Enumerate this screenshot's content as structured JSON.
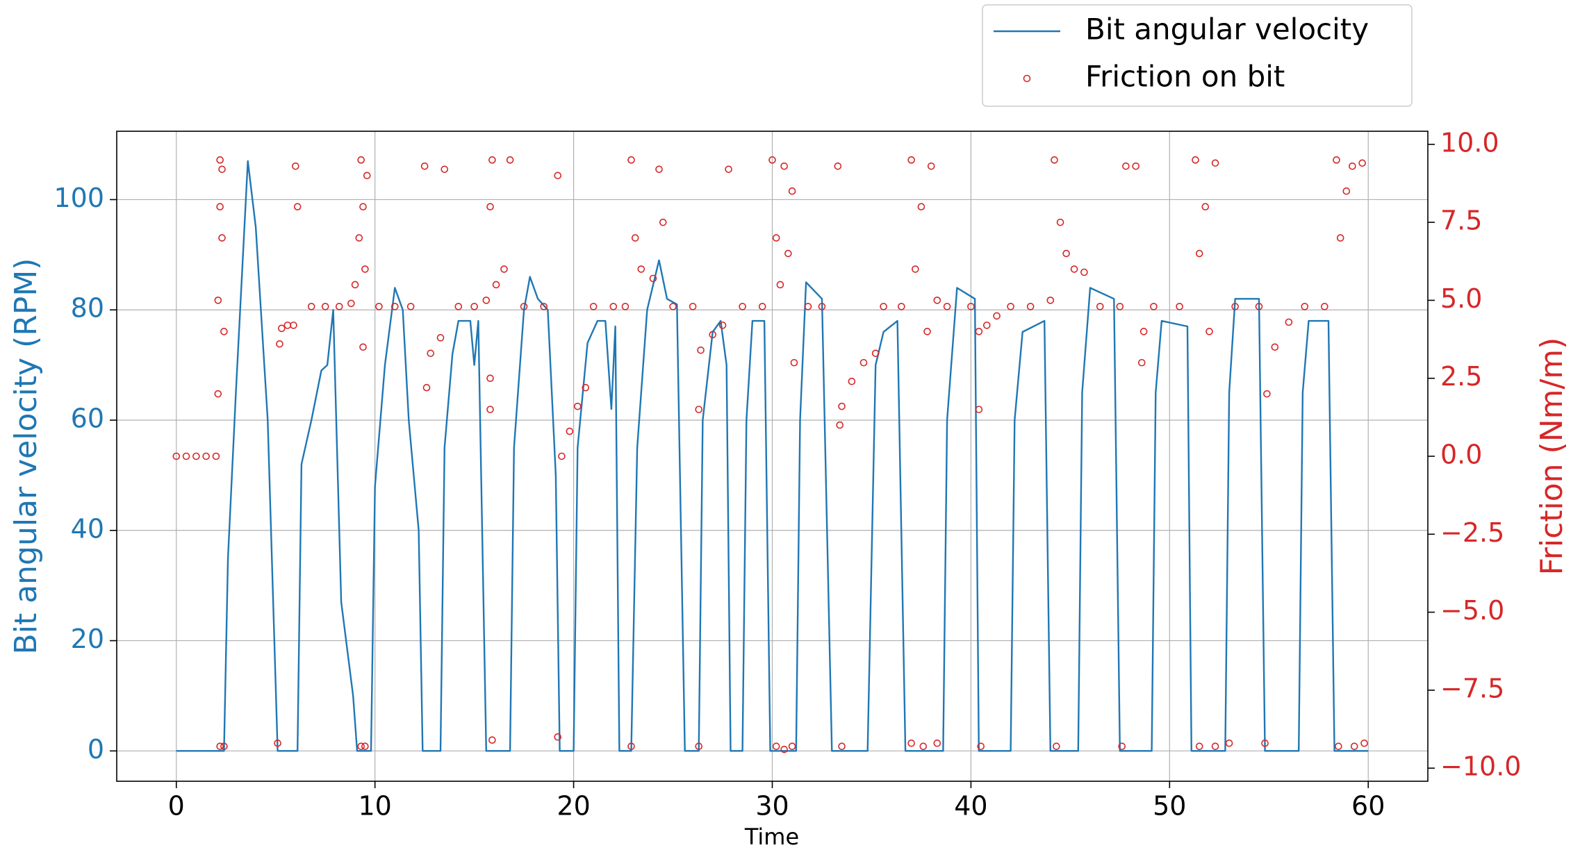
{
  "chart_data": {
    "type": "line_scatter",
    "xlabel": "Time",
    "ylabel": "Bit angular velocity (RPM)",
    "y2label": "Friction (Nm/m)",
    "xlim": [
      -3,
      63
    ],
    "xticks": [
      0,
      10,
      20,
      30,
      40,
      50,
      60
    ],
    "ylim": [
      -5.5,
      112.4
    ],
    "yticks": [
      0,
      20,
      40,
      60,
      80,
      100
    ],
    "y2lim": [
      -10.42,
      10.42
    ],
    "y2ticks": [
      {
        "value": -10,
        "label": "−10.0"
      },
      {
        "value": -7.5,
        "label": "−7.5"
      },
      {
        "value": -5,
        "label": "−5.0"
      },
      {
        "value": -2.5,
        "label": "−2.5"
      },
      {
        "value": 0,
        "label": "0.0"
      },
      {
        "value": 2.5,
        "label": "2.5"
      },
      {
        "value": 5,
        "label": "5.0"
      },
      {
        "value": 7.5,
        "label": "7.5"
      },
      {
        "value": 10,
        "label": "10.0"
      }
    ],
    "grid": true,
    "legend": "upper right",
    "series": [
      {
        "name": "Bit angular velocity",
        "color": "#1f77b4",
        "type": "line",
        "x": [
          0,
          2.4,
          2.6,
          3.0,
          3.6,
          4.0,
          4.6,
          5.1,
          6.1,
          6.3,
          6.8,
          7.3,
          7.6,
          7.9,
          8.3,
          8.9,
          9.1,
          9.8,
          10.0,
          10.5,
          11.0,
          11.4,
          11.7,
          12.2,
          12.4,
          13.3,
          13.5,
          13.9,
          14.2,
          14.8,
          15.0,
          15.2,
          15.6,
          16.8,
          17.0,
          17.5,
          17.8,
          18.2,
          18.7,
          19.1,
          19.3,
          20.0,
          20.2,
          20.7,
          21.2,
          21.6,
          21.9,
          22.1,
          22.3,
          22.9,
          23.2,
          23.7,
          24.3,
          24.7,
          25.2,
          25.6,
          26.3,
          26.5,
          27.0,
          27.4,
          27.7,
          27.9,
          28.5,
          28.7,
          29.0,
          29.6,
          29.9,
          31.2,
          31.4,
          31.7,
          32.5,
          33.0,
          34.8,
          35.2,
          35.6,
          36.3,
          36.7,
          38.6,
          38.8,
          39.3,
          40.2,
          40.4,
          42.0,
          42.2,
          42.6,
          43.7,
          44.0,
          45.4,
          45.6,
          46.0,
          47.2,
          47.5,
          49.1,
          49.3,
          49.6,
          50.9,
          51.1,
          52.8,
          53.0,
          53.3,
          54.5,
          54.8,
          56.5,
          56.7,
          57.0,
          58.0,
          58.3,
          60.0
        ],
        "values": [
          0,
          0,
          35,
          65,
          107,
          95,
          60,
          0,
          0,
          52,
          60,
          69,
          70,
          80,
          27,
          10,
          0,
          0,
          48,
          70,
          84,
          80,
          60,
          40,
          0,
          0,
          55,
          72,
          78,
          78,
          70,
          78,
          0,
          0,
          55,
          80,
          86,
          82,
          80,
          50,
          0,
          0,
          55,
          74,
          78,
          78,
          62,
          77,
          0,
          0,
          55,
          80,
          89,
          82,
          81,
          0,
          0,
          60,
          76,
          78,
          70,
          0,
          0,
          60,
          78,
          78,
          0,
          0,
          60,
          85,
          82,
          0,
          0,
          70,
          76,
          78,
          0,
          0,
          60,
          84,
          82,
          0,
          0,
          60,
          76,
          78,
          0,
          0,
          65,
          84,
          82,
          0,
          0,
          65,
          78,
          77,
          0,
          0,
          65,
          82,
          82,
          0,
          0,
          65,
          78,
          78,
          0,
          0
        ]
      },
      {
        "name": "Friction on bit",
        "color": "#d62728",
        "type": "scatter",
        "axis": "y2",
        "x": [
          0,
          0.5,
          1,
          1.5,
          2,
          2.1,
          2.1,
          2.2,
          2.2,
          2.3,
          2.3,
          2.4,
          2.2,
          2.4,
          5.1,
          5.2,
          5.3,
          5.6,
          5.9,
          6,
          6.1,
          6.8,
          7.5,
          8.2,
          8.8,
          9.0,
          9.2,
          9.3,
          9.4,
          9.5,
          9.6,
          9.4,
          9.3,
          9.5,
          10.2,
          11,
          11.8,
          12.5,
          12.6,
          12.8,
          13.3,
          13.5,
          14.2,
          15,
          15.6,
          15.8,
          15.9,
          15.8,
          15.8,
          15.9,
          16.1,
          16.5,
          16.8,
          17.5,
          18.5,
          19.2,
          19.2,
          19.4,
          19.8,
          20.2,
          20.6,
          21,
          22,
          22.6,
          22.9,
          22.9,
          23.1,
          23.4,
          24,
          24.3,
          24.5,
          25,
          26,
          26.3,
          26.3,
          26.4,
          27,
          27.5,
          27.8,
          28.5,
          29.5,
          30,
          30.2,
          30.4,
          30.6,
          30.8,
          31,
          31.1,
          30.2,
          30.6,
          31,
          31.8,
          32.5,
          33.3,
          33.4,
          33.5,
          33.5,
          34,
          34.6,
          35.2,
          35.6,
          36.5,
          37,
          37.2,
          37.5,
          37.8,
          38,
          38.3,
          37,
          37.6,
          38.3,
          38.8,
          40,
          40.4,
          40.4,
          40.5,
          40.8,
          41.3,
          42,
          43,
          44,
          44.2,
          44.5,
          44.8,
          45.2,
          45.7,
          44.3,
          46.5,
          47.5,
          47.6,
          47.8,
          48.3,
          48.6,
          48.7,
          49.2,
          50.5,
          51.3,
          51.5,
          51.8,
          52,
          52.3,
          51.5,
          52.3,
          53,
          53.3,
          54.5,
          54.8,
          54.9,
          55.3,
          56,
          56.8,
          57.8,
          58.4,
          58.6,
          58.9,
          59.2,
          59.7,
          58.5,
          59.3,
          59.8
        ],
        "values": [
          0,
          0,
          0,
          0,
          0,
          2,
          5,
          8,
          9.5,
          7,
          9.2,
          4,
          -9.3,
          -9.3,
          -9.2,
          3.6,
          4.1,
          4.2,
          4.2,
          9.3,
          8,
          4.8,
          4.8,
          4.8,
          4.9,
          5.5,
          7,
          9.5,
          8,
          6,
          9,
          3.5,
          -9.3,
          -9.3,
          4.8,
          4.8,
          4.8,
          9.3,
          2.2,
          3.3,
          3.8,
          9.2,
          4.8,
          4.8,
          5,
          8,
          9.5,
          2.5,
          1.5,
          -9.1,
          5.5,
          6,
          9.5,
          4.8,
          4.8,
          9,
          -9,
          0,
          0.8,
          1.6,
          2.2,
          4.8,
          4.8,
          4.8,
          9.5,
          -9.3,
          7,
          6,
          5.7,
          9.2,
          7.5,
          4.8,
          4.8,
          -9.3,
          1.5,
          3.4,
          3.9,
          4.2,
          9.2,
          4.8,
          4.8,
          9.5,
          7,
          5.5,
          9.3,
          6.5,
          8.5,
          3,
          -9.3,
          -9.4,
          -9.3,
          4.8,
          4.8,
          9.3,
          1,
          -9.3,
          1.6,
          2.4,
          3,
          3.3,
          4.8,
          4.8,
          9.5,
          6,
          8,
          4,
          9.3,
          5,
          -9.2,
          -9.3,
          -9.2,
          4.8,
          4.8,
          4,
          1.5,
          -9.3,
          4.2,
          4.5,
          4.8,
          4.8,
          5,
          9.5,
          7.5,
          6.5,
          6,
          5.9,
          -9.3,
          4.8,
          4.8,
          -9.3,
          9.3,
          9.3,
          3,
          4,
          4.8,
          4.8,
          9.5,
          6.5,
          8,
          4,
          9.4,
          -9.3,
          -9.3,
          -9.2,
          4.8,
          4.8,
          -9.2,
          2,
          3.5,
          4.3,
          4.8,
          4.8,
          9.5,
          7,
          8.5,
          9.3,
          9.4,
          -9.3,
          -9.3,
          -9.2
        ]
      }
    ]
  }
}
